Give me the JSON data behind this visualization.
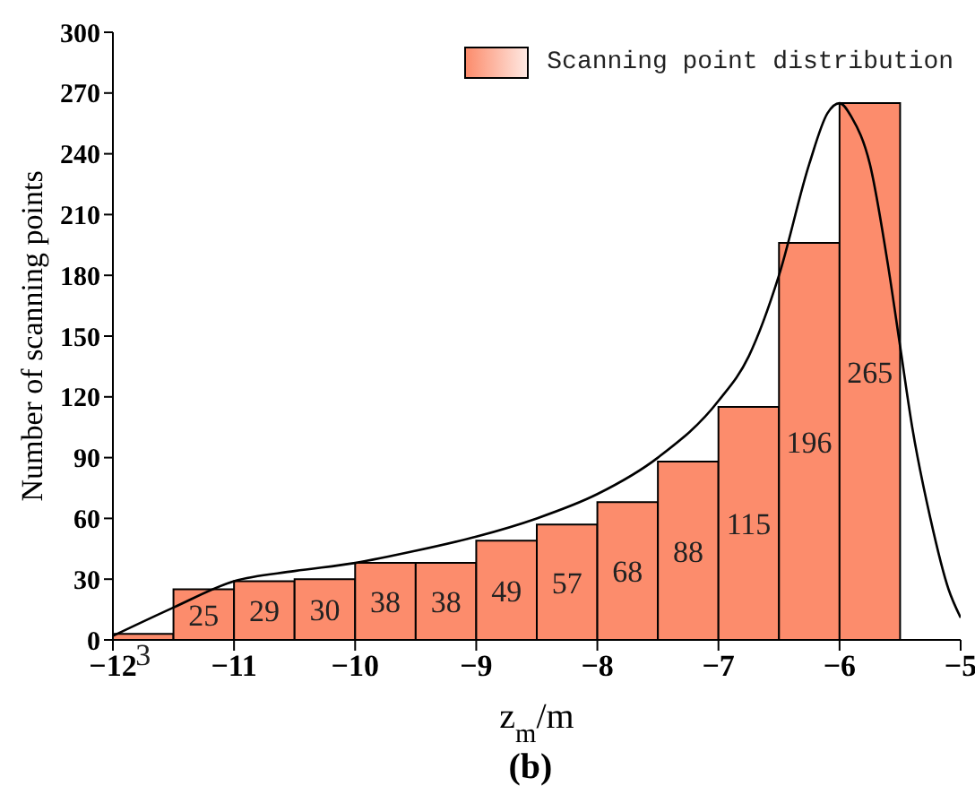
{
  "chart_data": {
    "type": "histogram",
    "xlabel": "z$_{m}$/m",
    "ylabel": "Number of scanning points",
    "annotations": [
      "(b)"
    ],
    "xlim": [
      -12,
      -5
    ],
    "xticks": [
      {
        "value": -12,
        "label": "−12"
      },
      {
        "value": -11,
        "label": "−11"
      },
      {
        "value": -10,
        "label": "−10"
      },
      {
        "value": -9,
        "label": "−9"
      },
      {
        "value": -8,
        "label": "−8"
      },
      {
        "value": -7,
        "label": "−7"
      },
      {
        "value": -6,
        "label": "−6"
      },
      {
        "value": -5,
        "label": "−5"
      }
    ],
    "ylim": [
      0,
      300
    ],
    "yticks": [
      0,
      30,
      60,
      90,
      120,
      150,
      180,
      210,
      240,
      270,
      300
    ],
    "legend": "top right",
    "series": [
      {
        "name": "Scanning point distribution",
        "color": "#fc8c6c",
        "bins": [
          -12,
          -11.5,
          -11,
          -10.5,
          -10,
          -9.5,
          -9,
          -8.5,
          -8,
          -7.5,
          -7,
          -6.5,
          -6,
          -5.5
        ],
        "values": [
          3,
          25,
          29,
          30,
          38,
          38,
          49,
          57,
          68,
          88,
          115,
          196,
          265
        ],
        "value_labels": [
          "3",
          "25",
          "29",
          "30",
          "38",
          "38",
          "49",
          "57",
          "68",
          "88",
          "115",
          "196",
          "265"
        ]
      },
      {
        "type": "line",
        "color": "#000000",
        "x": [
          -12,
          -11.5,
          -11,
          -10.5,
          -10,
          -9.5,
          -9,
          -8.5,
          -8,
          -7.5,
          -7,
          -6.75,
          -6.5,
          -6.25,
          -6.1,
          -6,
          -5.9,
          -5.75,
          -5.6,
          -5.5,
          -5.4,
          -5.25,
          -5.1,
          -5
        ],
        "values": [
          2,
          16,
          29,
          34,
          38,
          44,
          51,
          60,
          72,
          90,
          118,
          140,
          180,
          235,
          260,
          265,
          258,
          235,
          185,
          145,
          105,
          60,
          25,
          11
        ]
      }
    ]
  }
}
